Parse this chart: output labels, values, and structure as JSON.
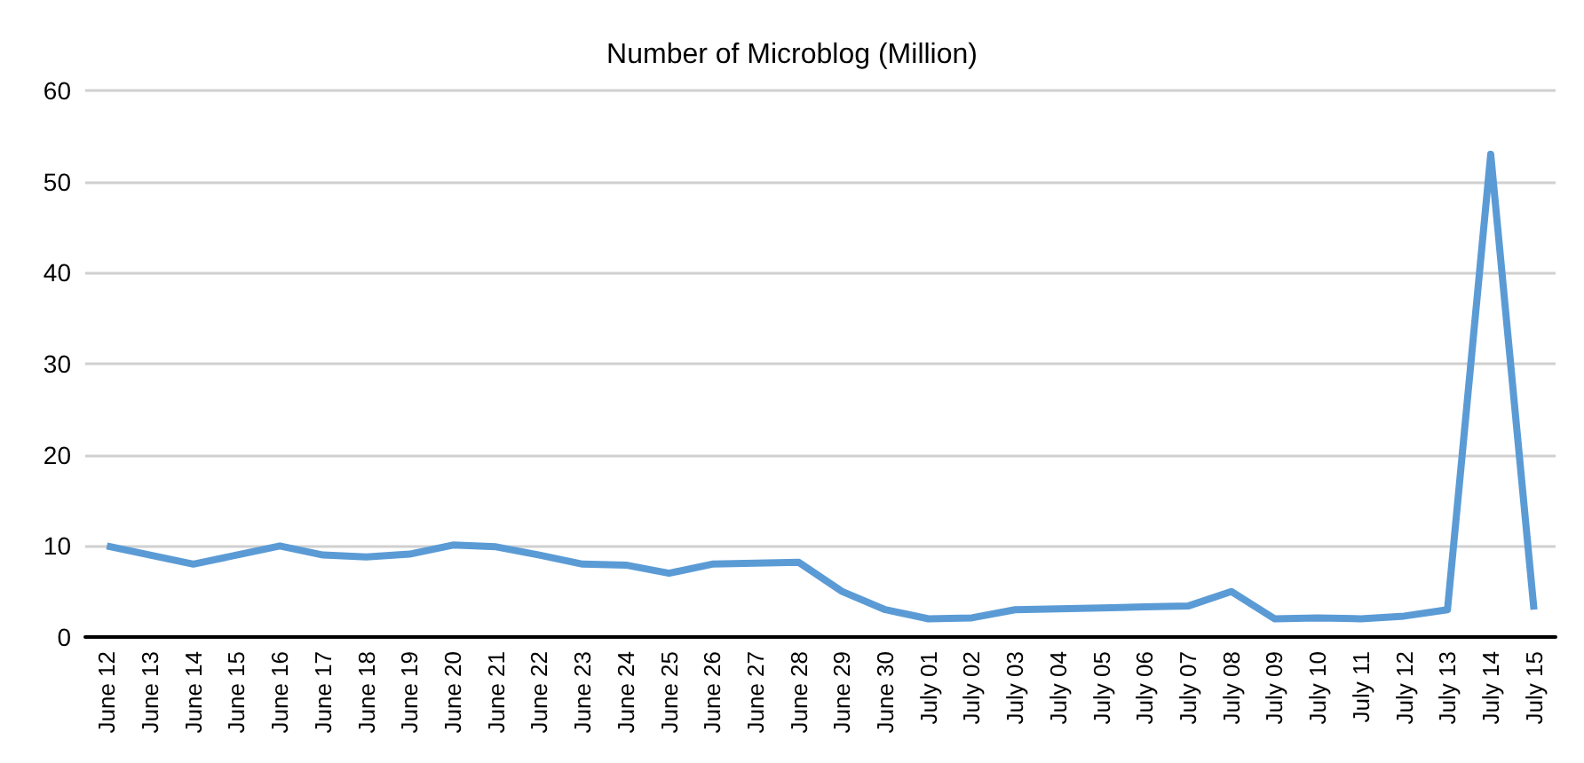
{
  "chart_data": {
    "type": "line",
    "title": "Number of Microblog (Million)",
    "categories": [
      "June 12",
      "June 13",
      "June 14",
      "June 15",
      "June 16",
      "June 17",
      "June 18",
      "June 19",
      "June 20",
      "June 21",
      "June 22",
      "June 23",
      "June 24",
      "June 25",
      "June 26",
      "June 27",
      "June 28",
      "June 29",
      "June 30",
      "July 01",
      "July 02",
      "July 03",
      "July 04",
      "July 05",
      "July 06",
      "July 07",
      "July 08",
      "July 09",
      "July 10",
      "July 11",
      "July 12",
      "July 13",
      "July 14",
      "July 15"
    ],
    "series": [
      {
        "color": "#5b9bd5",
        "values": [
          10,
          9,
          8,
          9,
          10,
          9,
          8.8,
          9.1,
          10.1,
          9.9,
          9,
          8,
          7.9,
          7,
          8,
          8.1,
          8.2,
          5,
          3,
          2,
          2.1,
          3,
          3.1,
          3.2,
          3.3,
          3.4,
          5,
          2,
          2.1,
          2,
          2.3,
          3,
          53,
          3
        ]
      }
    ],
    "ylim": [
      0,
      60
    ],
    "yticks": [
      0,
      10,
      20,
      30,
      40,
      50,
      60
    ],
    "grid": "y",
    "marker": "none",
    "line_style": "solid"
  }
}
